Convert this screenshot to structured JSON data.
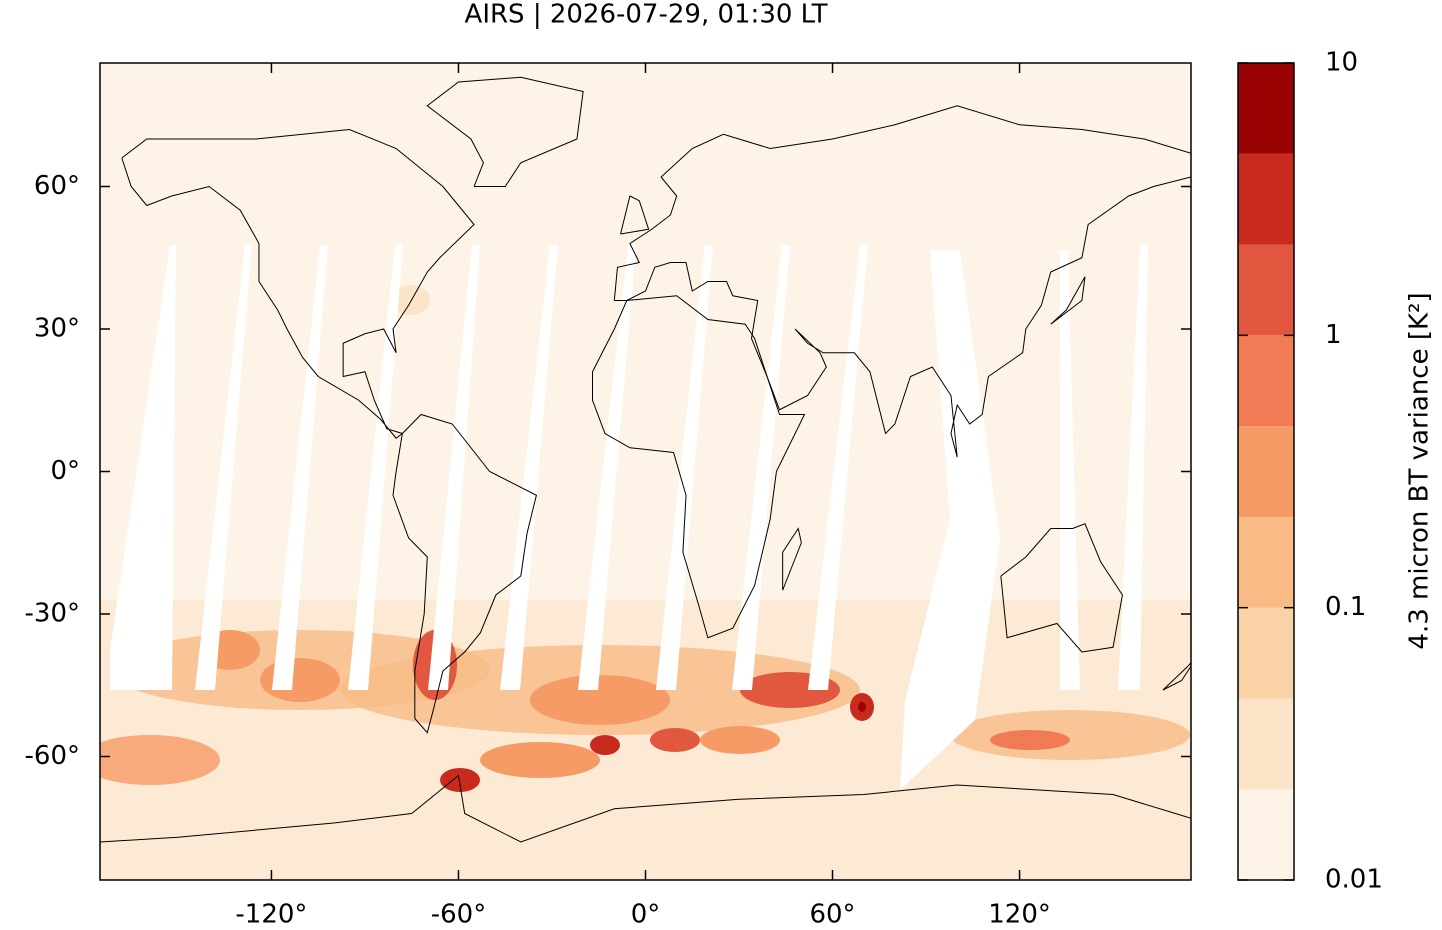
{
  "chart_data": {
    "type": "map",
    "title": "AIRS | 2026-07-29, 01:30 LT",
    "xlim": [
      -175,
      175
    ],
    "ylim": [
      -86,
      86
    ],
    "xticks": [
      {
        "value": -120,
        "label": "-120°"
      },
      {
        "value": -60,
        "label": "-60°"
      },
      {
        "value": 0,
        "label": "0°"
      },
      {
        "value": 60,
        "label": "60°"
      },
      {
        "value": 120,
        "label": "120°"
      }
    ],
    "yticks": [
      {
        "value": -60,
        "label": "-60°"
      },
      {
        "value": -30,
        "label": "-30°"
      },
      {
        "value": 0,
        "label": "0°"
      },
      {
        "value": 30,
        "label": "30°"
      },
      {
        "value": 60,
        "label": "60°"
      }
    ],
    "colorbar": {
      "label": "4.3 micron BT variance [K²]",
      "scale": "log",
      "lim": [
        0.01,
        10
      ],
      "ticks": [
        0.01,
        0.1,
        1,
        10
      ],
      "levels": [
        0.01,
        0.0215,
        0.0464,
        0.1,
        0.215,
        0.464,
        1,
        2.15,
        4.64,
        10
      ],
      "colors": [
        "#fdf3e7",
        "#fbe4c8",
        "#f9d2a6",
        "#f8bb86",
        "#f69a66",
        "#f17b55",
        "#e2573f",
        "#c92a1e",
        "#990303"
      ]
    }
  }
}
